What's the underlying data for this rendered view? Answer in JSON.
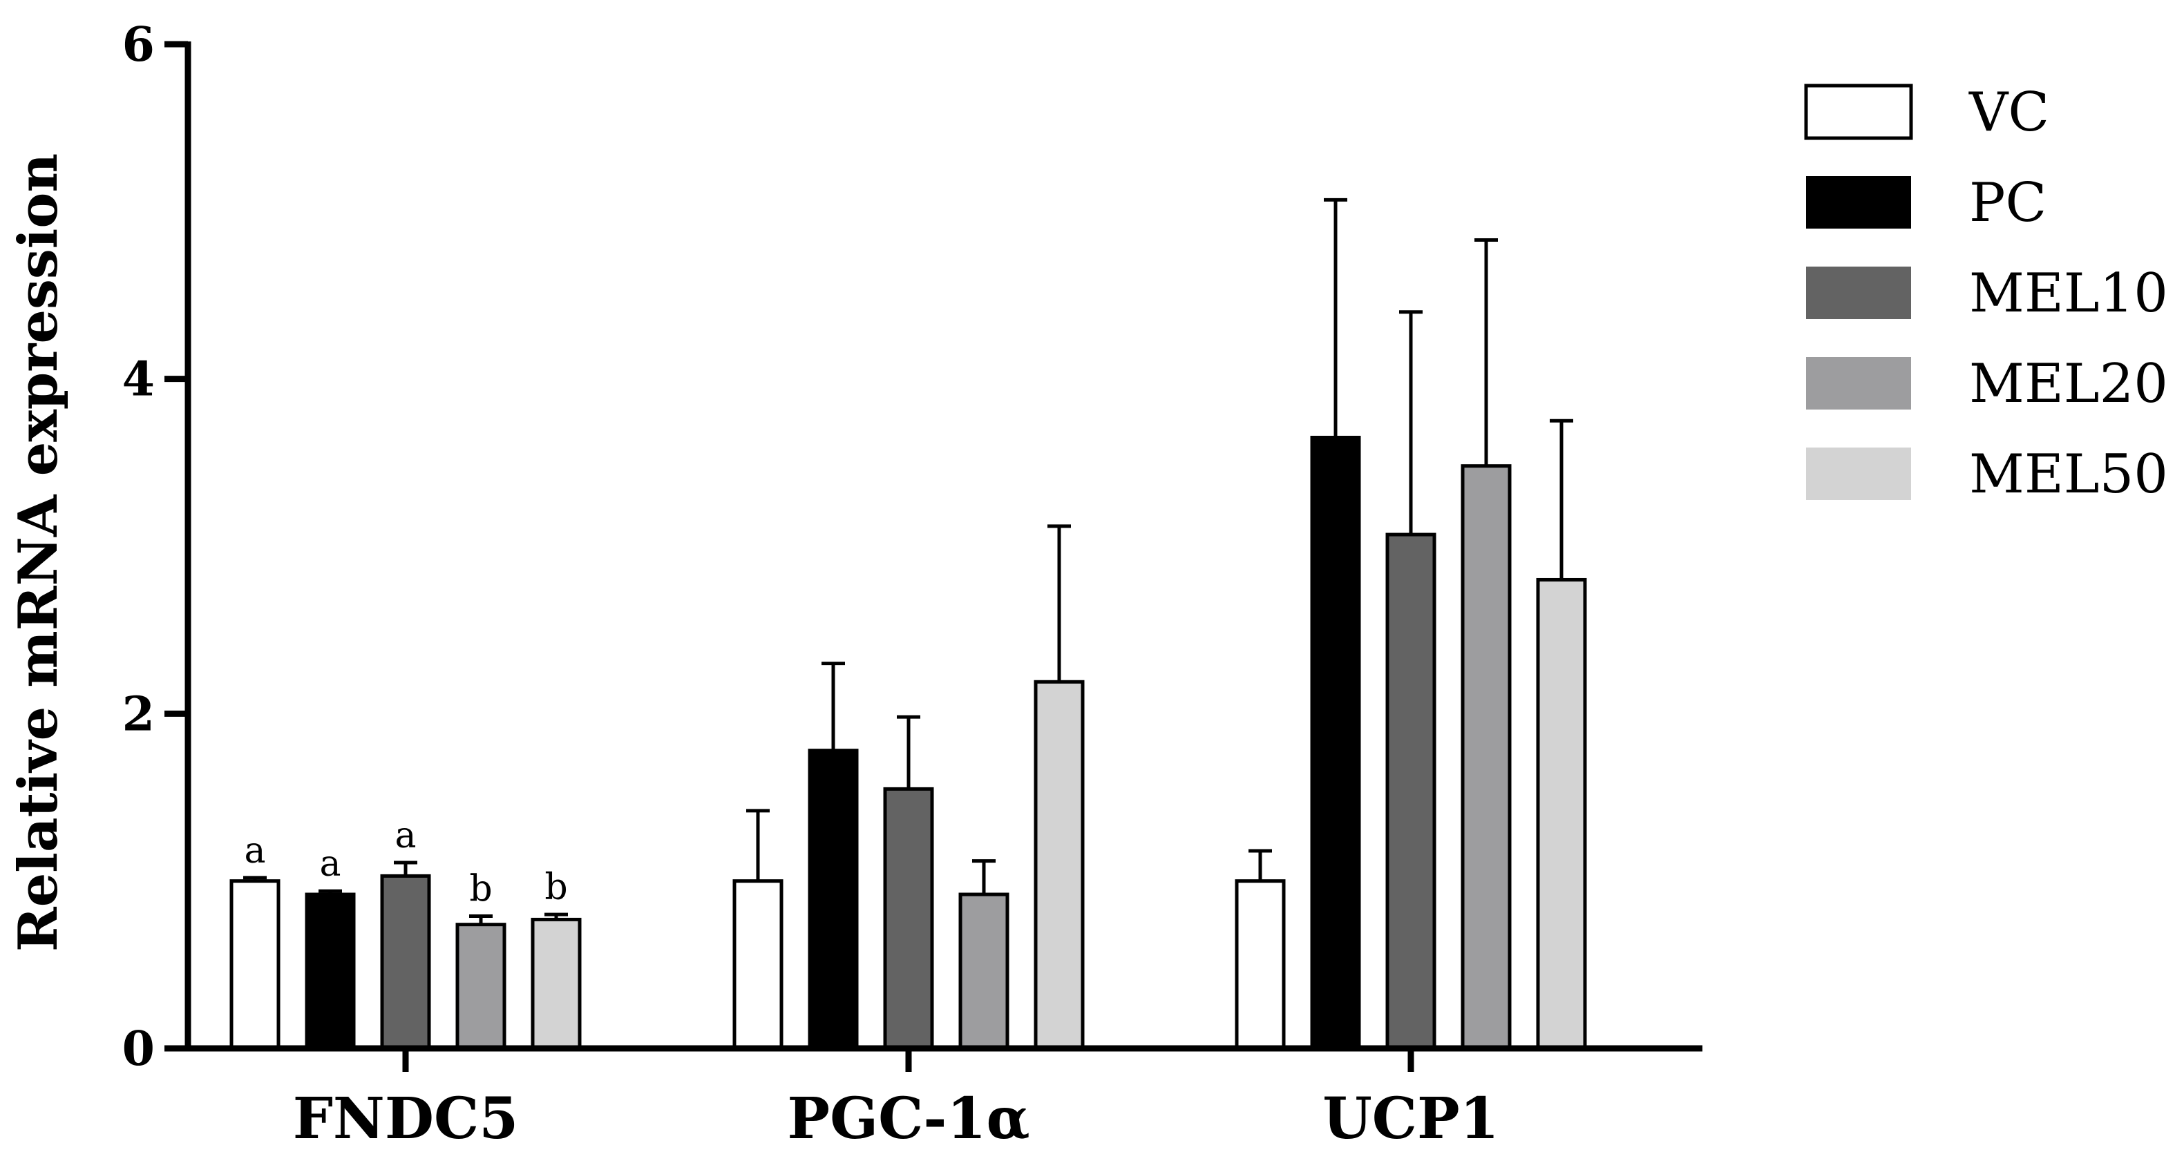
{
  "chart_data": {
    "type": "bar",
    "title": "",
    "xlabel": "",
    "ylabel": "Relative mRNA expression",
    "ylim": [
      0,
      6
    ],
    "yticks": [
      "0",
      "2",
      "4",
      "6"
    ],
    "ytick_values": [
      0,
      2,
      4,
      6
    ],
    "grid": false,
    "legend_position": "top-right",
    "categories": [
      "FNDC5",
      "PGC-1α",
      "UCP1"
    ],
    "series": [
      {
        "name": "VC",
        "color": "#ffffff",
        "values": [
          1.0,
          1.0,
          1.0
        ],
        "errors": [
          0.02,
          0.42,
          0.18
        ],
        "labels": [
          "a",
          "",
          ""
        ]
      },
      {
        "name": "PC",
        "color": "#000000",
        "values": [
          0.92,
          1.78,
          3.65
        ],
        "errors": [
          0.02,
          0.52,
          1.42
        ],
        "labels": [
          "a",
          "",
          ""
        ]
      },
      {
        "name": "MEL10",
        "color": "#636363",
        "values": [
          1.03,
          1.55,
          3.07
        ],
        "errors": [
          0.08,
          0.43,
          1.33
        ],
        "labels": [
          "a",
          "",
          ""
        ]
      },
      {
        "name": "MEL20",
        "color": "#9d9d9f",
        "values": [
          0.74,
          0.92,
          3.48
        ],
        "errors": [
          0.05,
          0.2,
          1.35
        ],
        "labels": [
          "b",
          "",
          ""
        ]
      },
      {
        "name": "MEL50",
        "color": "#d3d3d3",
        "values": [
          0.77,
          2.19,
          2.8
        ],
        "errors": [
          0.03,
          0.93,
          0.95
        ],
        "labels": [
          "b",
          "",
          ""
        ]
      }
    ]
  }
}
